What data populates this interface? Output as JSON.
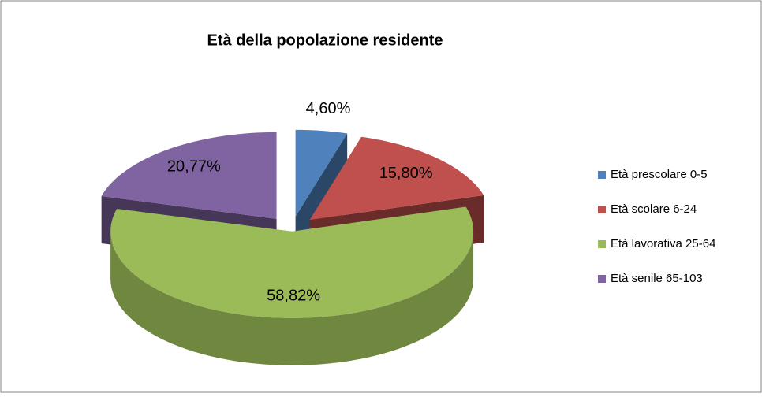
{
  "chart_data": {
    "type": "pie",
    "title": "Età della popolazione residente",
    "categories": [
      "Età prescolare 0-5",
      "Età scolare 6-24",
      "Età lavorativa 25-64",
      "Età senile 65-103"
    ],
    "values": [
      4.6,
      15.8,
      58.82,
      20.77
    ],
    "value_labels": [
      "4,60%",
      "15,80%",
      "58,82%",
      "20,77%"
    ],
    "colors": [
      "#4f81bd",
      "#c0504d",
      "#9bbb59",
      "#8064a2"
    ],
    "legend": "right"
  }
}
